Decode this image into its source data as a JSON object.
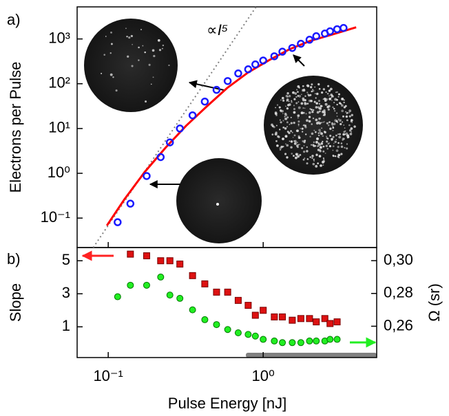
{
  "chart_data": [
    {
      "type": "scatter",
      "panel_label": "a)",
      "ylabel": "Electrons per Pulse",
      "annotation": "∝I⁵",
      "xscale": "log",
      "yscale": "log",
      "xlim": [
        0.063,
        5.4
      ],
      "ylim": [
        0.022,
        5200
      ],
      "yticks": [
        {
          "value": 0.1,
          "label": "10⁻¹"
        },
        {
          "value": 1,
          "label": "10⁰"
        },
        {
          "value": 10,
          "label": "10¹"
        },
        {
          "value": 100,
          "label": "10²"
        },
        {
          "value": 1000,
          "label": "10³"
        }
      ],
      "series": [
        {
          "mode": "dotted-line",
          "color": "#808080",
          "x": [
            0.08,
            0.9
          ],
          "values": [
            0.022,
            5200
          ]
        },
        {
          "mode": "line",
          "color": "#ff0000",
          "x": [
            0.098,
            0.127,
            0.172,
            0.234,
            0.318,
            0.432,
            0.587,
            0.798,
            1.09,
            1.48,
            2.0,
            2.73,
            3.98
          ],
          "values": [
            0.068,
            0.26,
            1.07,
            3.7,
            11.5,
            31,
            81,
            178,
            335,
            590,
            900,
            1230,
            1820
          ]
        },
        {
          "mode": "markers",
          "marker": "circle",
          "color": "#1a1aff",
          "x": [
            0.115,
            0.139,
            0.177,
            0.218,
            0.25,
            0.29,
            0.35,
            0.42,
            0.5,
            0.59,
            0.69,
            0.8,
            0.89,
            1.0,
            1.18,
            1.33,
            1.54,
            1.75,
            1.99,
            2.2,
            2.5,
            2.7,
            3.0,
            3.3
          ],
          "values": [
            0.081,
            0.21,
            0.87,
            2.3,
            4.9,
            10,
            19.7,
            40,
            73,
            115,
            170,
            210,
            270,
            330,
            410,
            520,
            630,
            780,
            960,
            1150,
            1320,
            1480,
            1650,
            1760
          ]
        }
      ]
    },
    {
      "type": "scatter",
      "panel_label": "b)",
      "ylabel": "Slope",
      "y2label": "Ω (sr)",
      "xlabel": "Pulse Energy [nJ]",
      "xscale": "log",
      "xlim": [
        0.063,
        5.4
      ],
      "ylim": [
        -0.86,
        5.8
      ],
      "y2lim": [
        0.2409,
        0.308
      ],
      "xticks": [
        {
          "value": 0.1,
          "label": "10⁻¹"
        },
        {
          "value": 1,
          "label": "10⁰"
        }
      ],
      "yticks": [
        1,
        3,
        5
      ],
      "y2ticks": [
        {
          "value": 0.26,
          "label": "0,26"
        },
        {
          "value": 0.28,
          "label": "0,28"
        },
        {
          "value": 0.3,
          "label": "0,30"
        }
      ],
      "series": [
        {
          "mode": "markers",
          "marker": "square",
          "color": "#dd1111",
          "x": [
            0.139,
            0.177,
            0.218,
            0.25,
            0.29,
            0.35,
            0.42,
            0.5,
            0.59,
            0.69,
            0.8,
            0.89,
            1.0,
            1.18,
            1.33,
            1.54,
            1.75,
            1.99,
            2.2,
            2.5,
            2.7,
            3.0
          ],
          "values": [
            5.4,
            5.3,
            5.0,
            5.0,
            4.8,
            4.1,
            3.6,
            3.1,
            3.1,
            2.6,
            2.3,
            1.7,
            2.0,
            1.6,
            1.6,
            1.4,
            1.5,
            1.5,
            1.3,
            1.5,
            1.2,
            1.3
          ]
        },
        {
          "mode": "markers",
          "marker": "circle",
          "axis": "y2",
          "color": "#22ee22",
          "x": [
            0.115,
            0.139,
            0.177,
            0.218,
            0.25,
            0.29,
            0.35,
            0.42,
            0.5,
            0.59,
            0.69,
            0.8,
            0.89,
            1.0,
            1.18,
            1.33,
            1.54,
            1.75,
            1.99,
            2.2,
            2.5,
            2.7,
            3.0
          ],
          "values": [
            0.278,
            0.285,
            0.285,
            0.29,
            0.279,
            0.277,
            0.27,
            0.264,
            0.261,
            0.258,
            0.256,
            0.255,
            0.254,
            0.252,
            0.251,
            0.25,
            0.25,
            0.25,
            0.251,
            0.251,
            0.251,
            0.252,
            0.252
          ]
        }
      ]
    }
  ]
}
